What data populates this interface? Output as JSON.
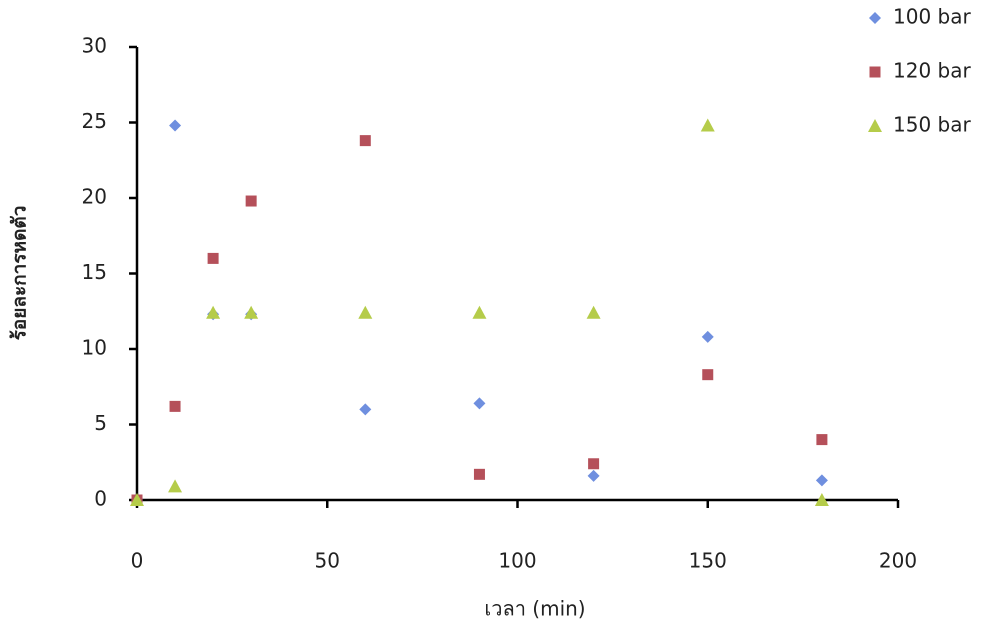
{
  "chart_data": {
    "type": "scatter",
    "x_label": "เวลา (min)",
    "y_label": "ร้อยละการหดตัว",
    "x": [
      0,
      10,
      20,
      30,
      60,
      90,
      120,
      150,
      180
    ],
    "series": [
      {
        "name": "100 bar",
        "color": "#6f8fdf",
        "marker": "diamond",
        "values": [
          0,
          24.8,
          12.3,
          12.3,
          6,
          6.4,
          1.6,
          10.8,
          1.3
        ]
      },
      {
        "name": "120 bar",
        "color": "#b5505a",
        "marker": "square",
        "values": [
          0,
          6.2,
          16,
          19.8,
          23.8,
          1.7,
          2.4,
          8.3,
          4.0
        ]
      },
      {
        "name": "150 bar",
        "color": "#b5cc4a",
        "marker": "triangle",
        "values": [
          0,
          0.9,
          12.4,
          12.4,
          12.4,
          12.4,
          12.4,
          24.8,
          0
        ]
      }
    ],
    "xlim": [
      0,
      200
    ],
    "xticks": [
      0,
      50,
      100,
      150,
      200
    ],
    "ylim": [
      0,
      30
    ],
    "yticks": [
      0,
      5,
      10,
      15,
      20,
      25,
      30
    ],
    "grid": false,
    "legend": "top-right"
  }
}
